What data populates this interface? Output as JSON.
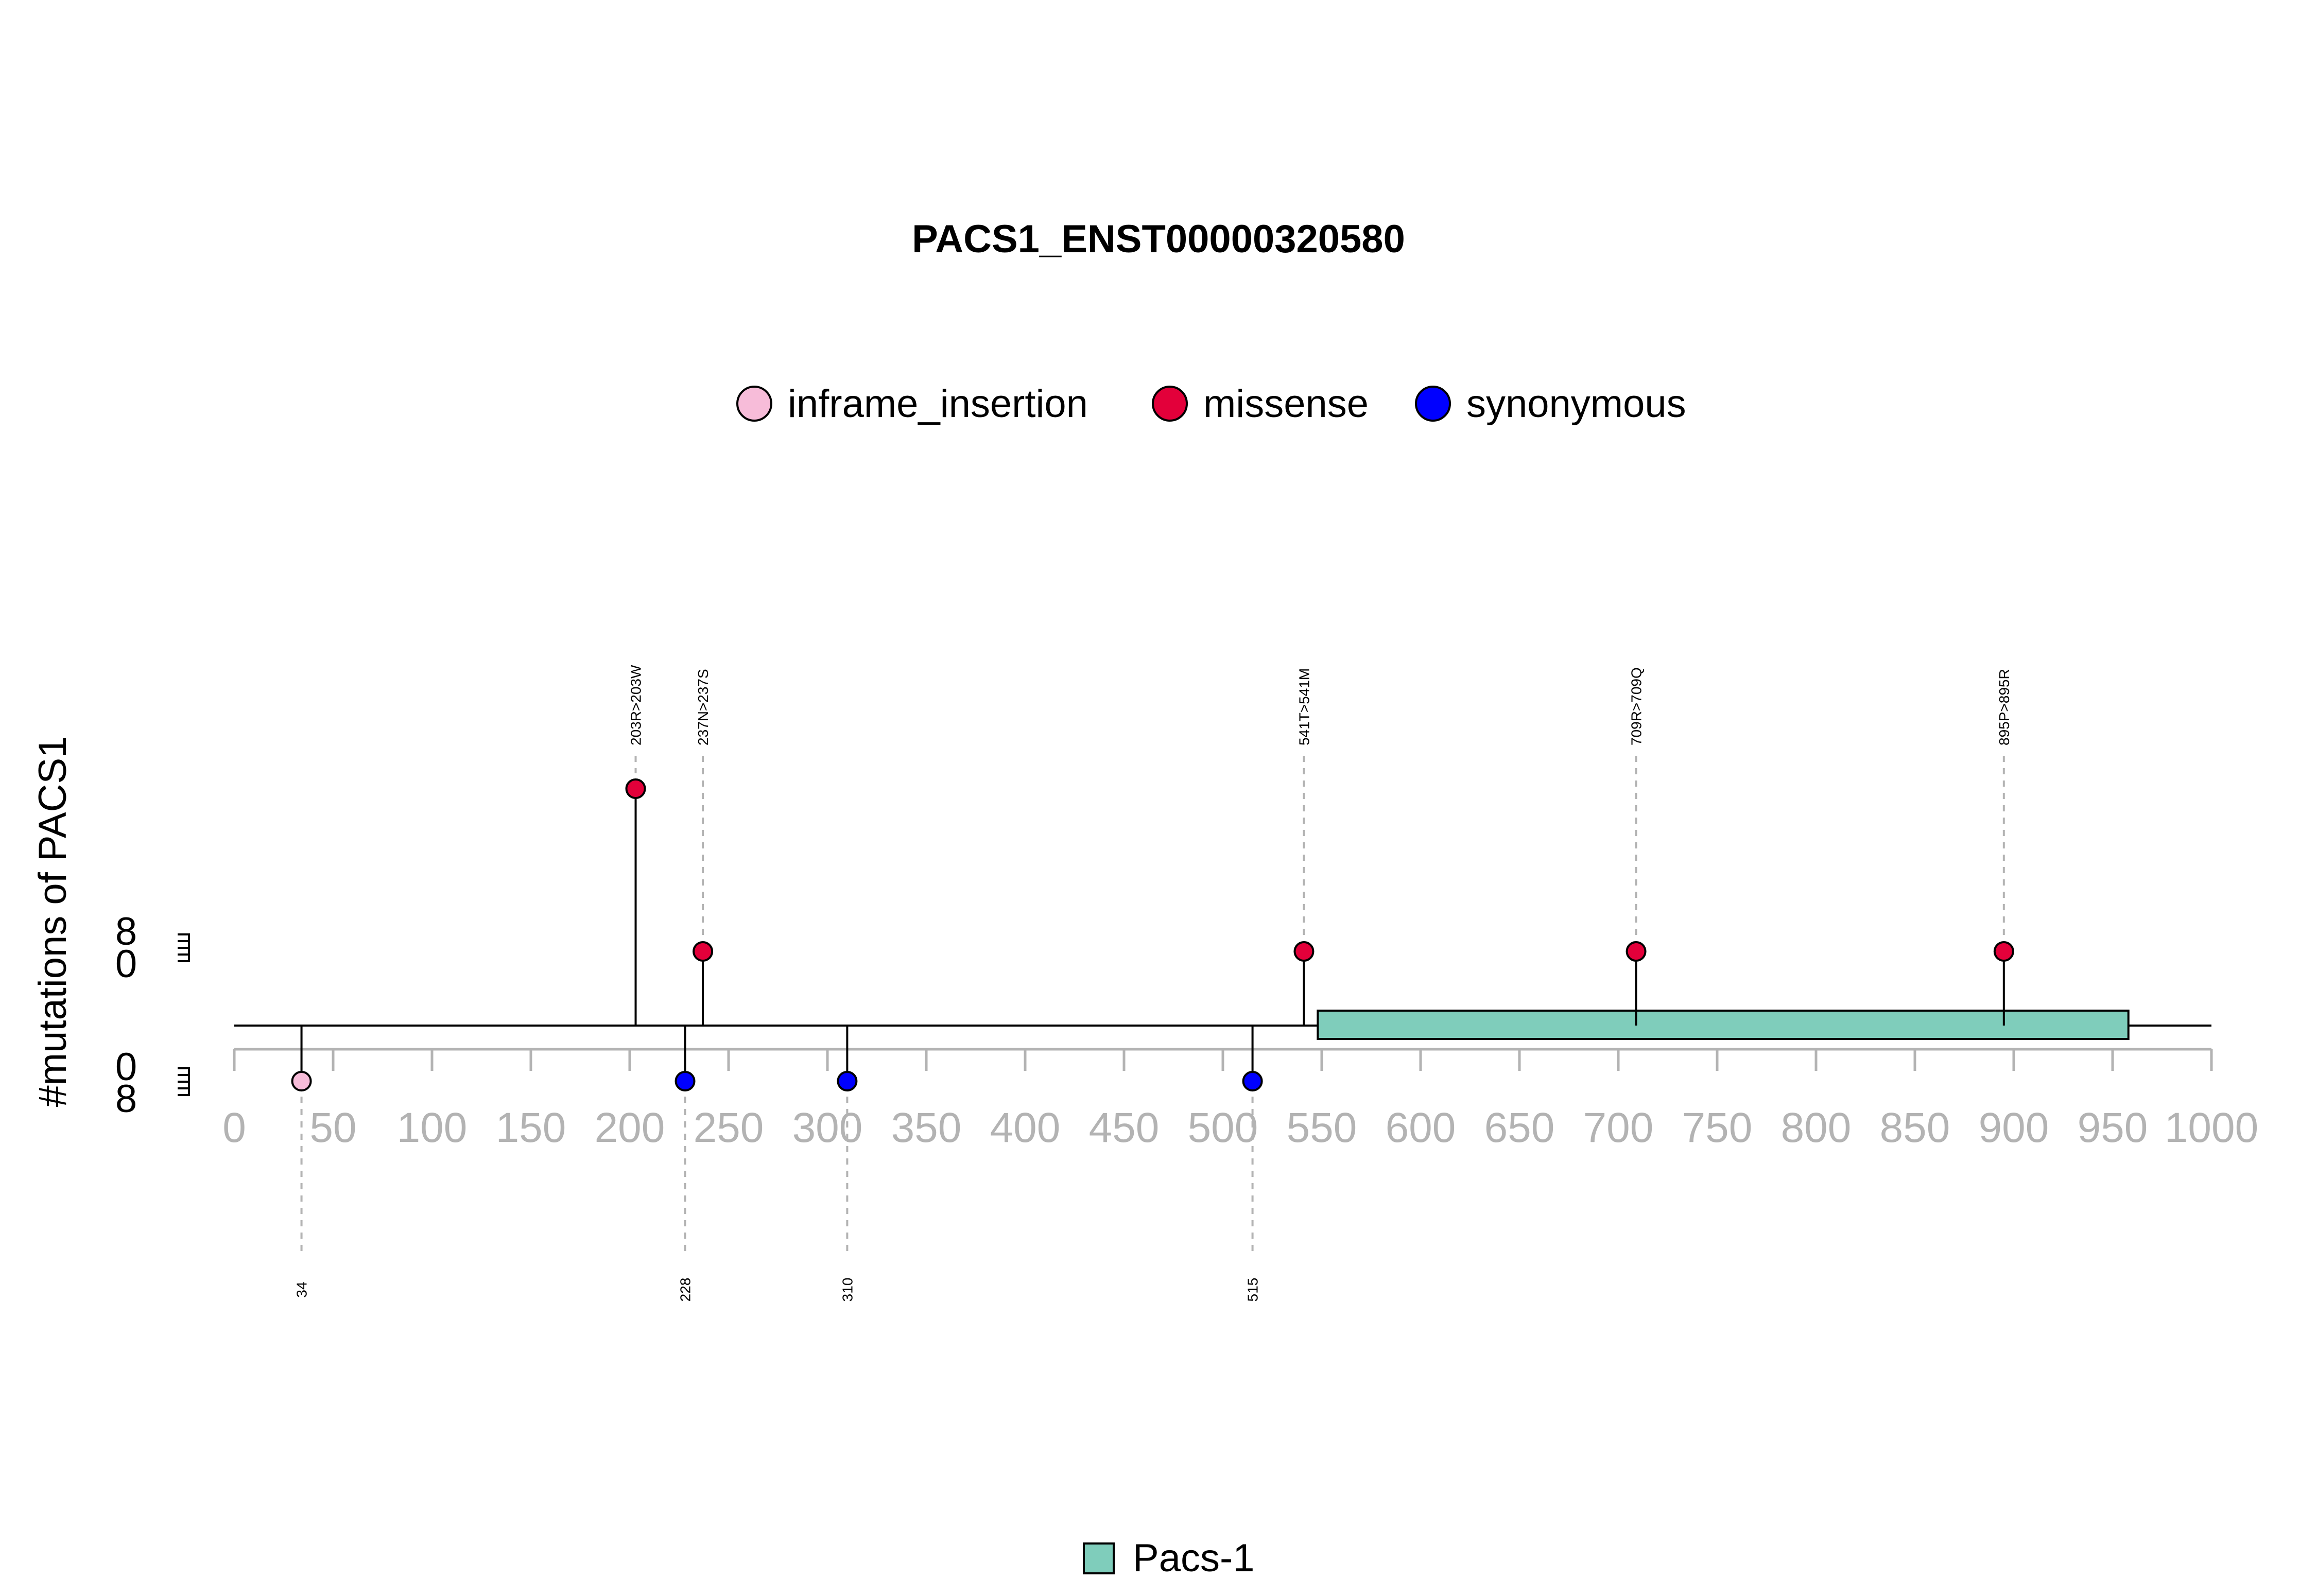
{
  "chart_data": {
    "type": "lollipop",
    "title": "PACS1_ENST00000320580",
    "ylabel": "#mutations of PACS1",
    "xlim": [
      0,
      1000
    ],
    "x_ticks": [
      0,
      50,
      100,
      150,
      200,
      250,
      300,
      350,
      400,
      450,
      500,
      550,
      600,
      650,
      700,
      750,
      800,
      850,
      900,
      950,
      1000
    ],
    "y_tick_labels_top": [
      "8",
      "0"
    ],
    "y_tick_labels_bottom": [
      "0",
      "8"
    ],
    "legend": [
      {
        "name": "inframe_insertion",
        "color": "#F7BCD9"
      },
      {
        "name": "missense",
        "color": "#E3003A"
      },
      {
        "name": "synonymous",
        "color": "#0000FF"
      }
    ],
    "mutations_top": [
      {
        "position": 203,
        "label": "203R>203W",
        "type": "missense",
        "level": 2,
        "show_label": true
      },
      {
        "position": 237,
        "label": "237N>237S",
        "type": "missense",
        "level": 1,
        "show_label": true
      },
      {
        "position": 541,
        "label": "541T>541M",
        "type": "missense",
        "level": 1,
        "show_label": true
      },
      {
        "position": 709,
        "label": "709R>709Q",
        "type": "missense",
        "level": 1,
        "show_label": true
      },
      {
        "position": 895,
        "label": "895P>895R",
        "type": "missense",
        "level": 1,
        "show_label": true
      }
    ],
    "mutations_bottom": [
      {
        "position": 34,
        "label": "34",
        "type": "inframe_insertion",
        "level": 1
      },
      {
        "position": 228,
        "label": "228",
        "type": "synonymous",
        "level": 1
      },
      {
        "position": 310,
        "label": "310",
        "type": "synonymous",
        "level": 1
      },
      {
        "position": 515,
        "label": "515",
        "type": "synonymous",
        "level": 1
      }
    ],
    "domains": [
      {
        "name": "Pacs-1",
        "start": 548,
        "end": 958,
        "color": "#7FCDBB"
      }
    ],
    "domain_legend": [
      {
        "name": "Pacs-1",
        "color": "#7FCDBB"
      }
    ]
  }
}
